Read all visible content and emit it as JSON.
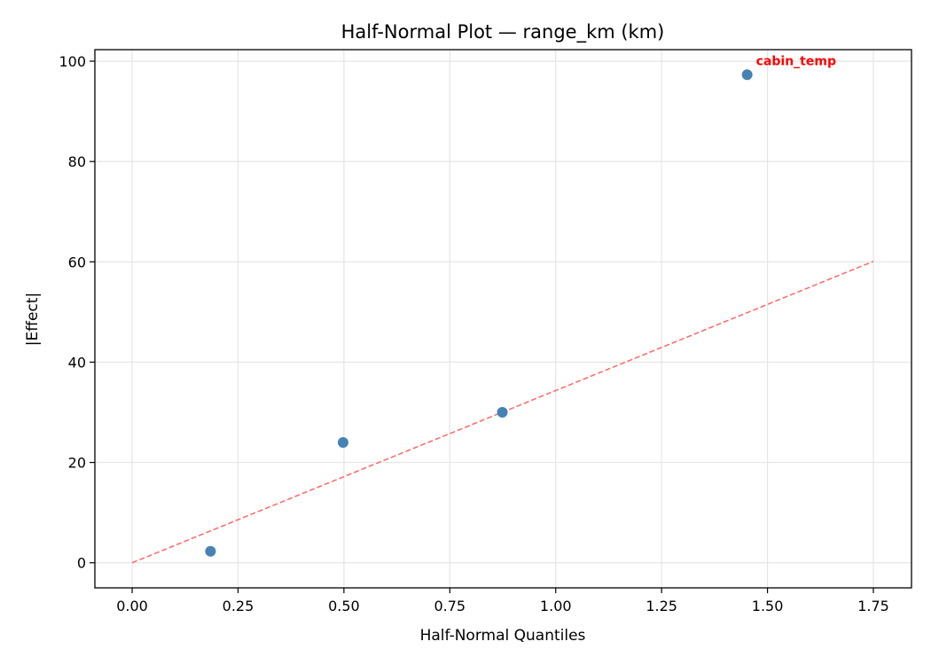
{
  "chart_data": {
    "type": "scatter",
    "title": "Half-Normal Plot — range_km (km)",
    "xlabel": "Half-Normal Quantiles",
    "ylabel": "|Effect|",
    "xlim": [
      -0.088,
      1.84
    ],
    "ylim": [
      -5,
      102.3
    ],
    "xticks": [
      0.0,
      0.25,
      0.5,
      0.75,
      1.0,
      1.25,
      1.5,
      1.75
    ],
    "xtick_labels": [
      "0.00",
      "0.25",
      "0.50",
      "0.75",
      "1.00",
      "1.25",
      "1.50",
      "1.75"
    ],
    "yticks": [
      0,
      20,
      40,
      60,
      80,
      100
    ],
    "ytick_labels": [
      "0",
      "20",
      "40",
      "60",
      "80",
      "100"
    ],
    "grid": true,
    "points": [
      {
        "x": 0.185,
        "y": 2.3
      },
      {
        "x": 0.498,
        "y": 24.0
      },
      {
        "x": 0.874,
        "y": 30.0
      },
      {
        "x": 1.452,
        "y": 97.3,
        "label": "cabin_temp"
      }
    ],
    "reference_line": {
      "x": [
        0,
        1.75
      ],
      "y": [
        0,
        60.1
      ],
      "style": "dashed"
    },
    "colors": {
      "points": "#4682b4",
      "reference_line": "#ff6666",
      "annotation": "#ff0000"
    }
  }
}
